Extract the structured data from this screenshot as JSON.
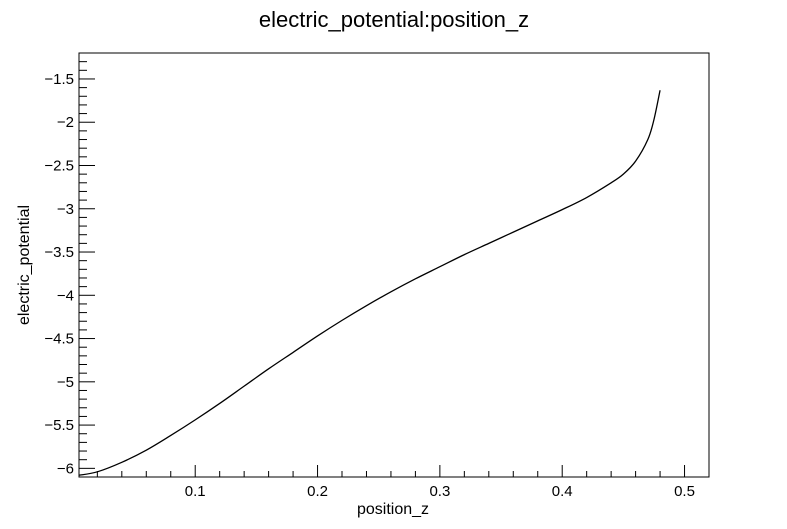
{
  "chart_data": {
    "type": "line",
    "title": "electric_potential:position_z",
    "xlabel": "position_z",
    "ylabel": "electric_potential",
    "xlim": [
      0.005,
      0.52
    ],
    "ylim": [
      -6.1,
      -1.2
    ],
    "x_ticks": [
      0.1,
      0.2,
      0.3,
      0.4,
      0.5
    ],
    "x_tick_labels": [
      "0.1",
      "0.2",
      "0.3",
      "0.4",
      "0.5"
    ],
    "y_ticks": [
      -6,
      -5.5,
      -5,
      -4.5,
      -4,
      -3.5,
      -3,
      -2.5,
      -2,
      -1.5
    ],
    "y_tick_labels": [
      "−6",
      "−5.5",
      "−5",
      "−4.5",
      "−4",
      "−3.5",
      "−3",
      "−2.5",
      "−2",
      "−1.5"
    ],
    "grid": false,
    "line_color": "#000000",
    "series": [
      {
        "x": [
          0.005,
          0.02,
          0.04,
          0.06,
          0.08,
          0.1,
          0.12,
          0.14,
          0.16,
          0.18,
          0.2,
          0.22,
          0.24,
          0.26,
          0.28,
          0.3,
          0.32,
          0.34,
          0.36,
          0.38,
          0.4,
          0.42,
          0.44,
          0.45,
          0.46,
          0.47,
          0.475,
          0.48
        ],
        "y": [
          -6.08,
          -6.04,
          -5.93,
          -5.79,
          -5.62,
          -5.44,
          -5.25,
          -5.05,
          -4.85,
          -4.66,
          -4.47,
          -4.29,
          -4.12,
          -3.96,
          -3.81,
          -3.67,
          -3.53,
          -3.4,
          -3.27,
          -3.14,
          -3.01,
          -2.87,
          -2.7,
          -2.6,
          -2.45,
          -2.2,
          -1.97,
          -1.63
        ]
      }
    ]
  }
}
